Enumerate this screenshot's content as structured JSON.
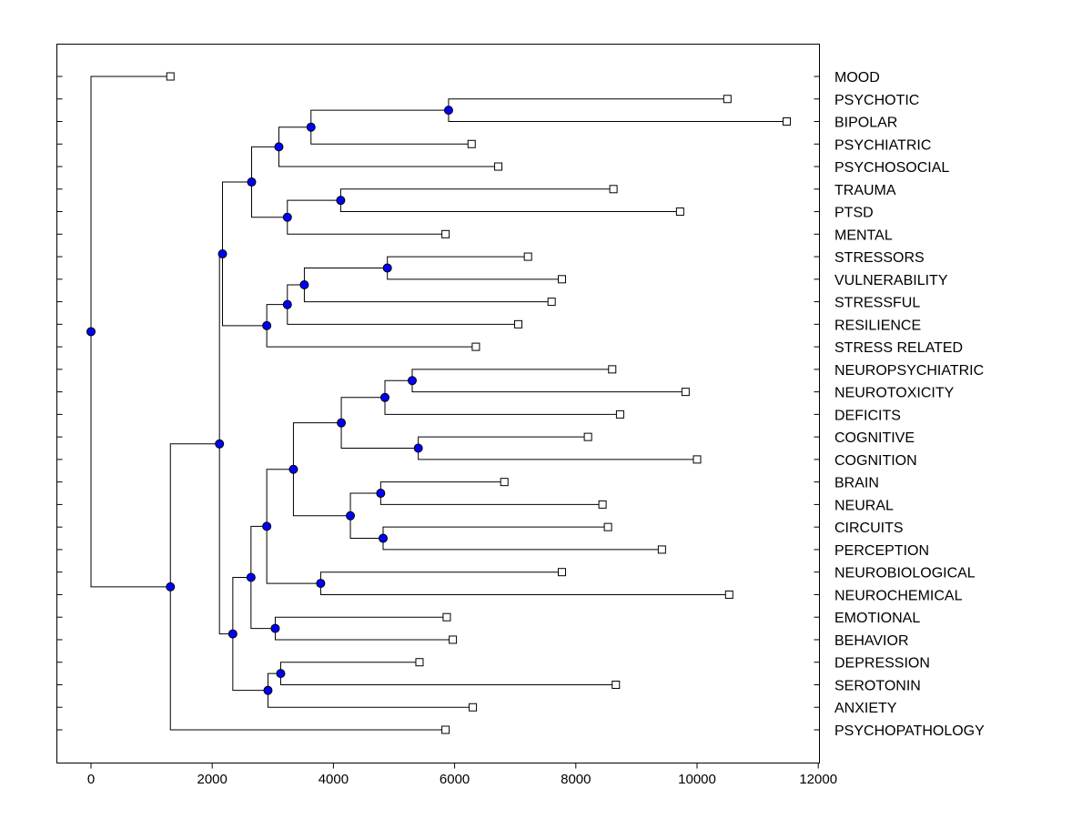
{
  "chart_data": {
    "type": "dendrogram",
    "title": "",
    "xlabel": "",
    "ylabel": "",
    "xlim": [
      -600,
      12000
    ],
    "x_ticks": [
      0,
      2000,
      4000,
      6000,
      8000,
      10000,
      12000
    ],
    "x_tick_labels": [
      "0",
      "2000",
      "4000",
      "6000",
      "8000",
      "10000",
      "12000"
    ],
    "leaves": [
      {
        "label": "MOOD",
        "x": 1310
      },
      {
        "label": "PSYCHOTIC",
        "x": 10500
      },
      {
        "label": "BIPOLAR",
        "x": 11480
      },
      {
        "label": "PSYCHIATRIC",
        "x": 6280
      },
      {
        "label": "PSYCHOSOCIAL",
        "x": 6720
      },
      {
        "label": "TRAUMA",
        "x": 8620
      },
      {
        "label": "PTSD",
        "x": 9720
      },
      {
        "label": "MENTAL",
        "x": 5850
      },
      {
        "label": "STRESSORS",
        "x": 7210
      },
      {
        "label": "VULNERABILITY",
        "x": 7770
      },
      {
        "label": "STRESSFUL",
        "x": 7600
      },
      {
        "label": "RESILIENCE",
        "x": 7050
      },
      {
        "label": "STRESS RELATED",
        "x": 6350
      },
      {
        "label": "NEUROPSYCHIATRIC",
        "x": 8600
      },
      {
        "label": "NEUROTOXICITY",
        "x": 9810
      },
      {
        "label": "DEFICITS",
        "x": 8730
      },
      {
        "label": "COGNITIVE",
        "x": 8200
      },
      {
        "label": "COGNITION",
        "x": 10000
      },
      {
        "label": "BRAIN",
        "x": 6820
      },
      {
        "label": "NEURAL",
        "x": 8440
      },
      {
        "label": "CIRCUITS",
        "x": 8530
      },
      {
        "label": "PERCEPTION",
        "x": 9420
      },
      {
        "label": "NEUROBIOLOGICAL",
        "x": 7770
      },
      {
        "label": "NEUROCHEMICAL",
        "x": 10530
      },
      {
        "label": "EMOTIONAL",
        "x": 5870
      },
      {
        "label": "BEHAVIOR",
        "x": 5970
      },
      {
        "label": "DEPRESSION",
        "x": 5420
      },
      {
        "label": "SEROTONIN",
        "x": 8660
      },
      {
        "label": "ANXIETY",
        "x": 6300
      },
      {
        "label": "PSYCHOPATHOLOGY",
        "x": 5850
      }
    ],
    "merges": [
      {
        "id": "n1",
        "x": 5900,
        "children": [
          1,
          2
        ]
      },
      {
        "id": "n2",
        "x": 3630,
        "children": [
          "n1",
          3
        ]
      },
      {
        "id": "n3",
        "x": 3100,
        "children": [
          "n2",
          4
        ]
      },
      {
        "id": "n4",
        "x": 4120,
        "children": [
          5,
          6
        ]
      },
      {
        "id": "n5",
        "x": 3240,
        "children": [
          "n4",
          7
        ]
      },
      {
        "id": "n6",
        "x": 2650,
        "children": [
          "n3",
          "n5"
        ]
      },
      {
        "id": "n7",
        "x": 4890,
        "children": [
          8,
          9
        ]
      },
      {
        "id": "n8",
        "x": 3520,
        "children": [
          "n7",
          10
        ]
      },
      {
        "id": "n9",
        "x": 3240,
        "children": [
          "n8",
          11
        ]
      },
      {
        "id": "n10",
        "x": 2900,
        "children": [
          "n9",
          12
        ]
      },
      {
        "id": "n11",
        "x": 2170,
        "children": [
          "n6",
          "n10"
        ]
      },
      {
        "id": "n12",
        "x": 5300,
        "children": [
          13,
          14
        ]
      },
      {
        "id": "n13",
        "x": 4850,
        "children": [
          "n12",
          15
        ]
      },
      {
        "id": "n14",
        "x": 5400,
        "children": [
          16,
          17
        ]
      },
      {
        "id": "n15",
        "x": 4130,
        "children": [
          "n13",
          "n14"
        ]
      },
      {
        "id": "n16",
        "x": 4780,
        "children": [
          18,
          19
        ]
      },
      {
        "id": "n17",
        "x": 4820,
        "children": [
          20,
          21
        ]
      },
      {
        "id": "n18",
        "x": 4280,
        "children": [
          "n16",
          "n17"
        ]
      },
      {
        "id": "n19",
        "x": 3340,
        "children": [
          "n15",
          "n18"
        ]
      },
      {
        "id": "n20",
        "x": 3790,
        "children": [
          22,
          23
        ]
      },
      {
        "id": "n21",
        "x": 2900,
        "children": [
          "n19",
          "n20"
        ]
      },
      {
        "id": "n22",
        "x": 3040,
        "children": [
          24,
          25
        ]
      },
      {
        "id": "n23",
        "x": 2640,
        "children": [
          "n21",
          "n22"
        ]
      },
      {
        "id": "n24",
        "x": 3130,
        "children": [
          26,
          27
        ]
      },
      {
        "id": "n25",
        "x": 2920,
        "children": [
          "n24",
          28
        ]
      },
      {
        "id": "n26",
        "x": 2340,
        "children": [
          "n23",
          "n25"
        ]
      },
      {
        "id": "n27",
        "x": 2120,
        "children": [
          "n11",
          "n26"
        ]
      },
      {
        "id": "n28",
        "x": 1310,
        "children": [
          "n27",
          29
        ]
      },
      {
        "id": "n29",
        "x": 0,
        "children": [
          0,
          "n28"
        ]
      }
    ],
    "colors": {
      "node_fill": "#0000ff",
      "line": "#000000",
      "leaf_marker_fill": "#ffffff"
    }
  }
}
